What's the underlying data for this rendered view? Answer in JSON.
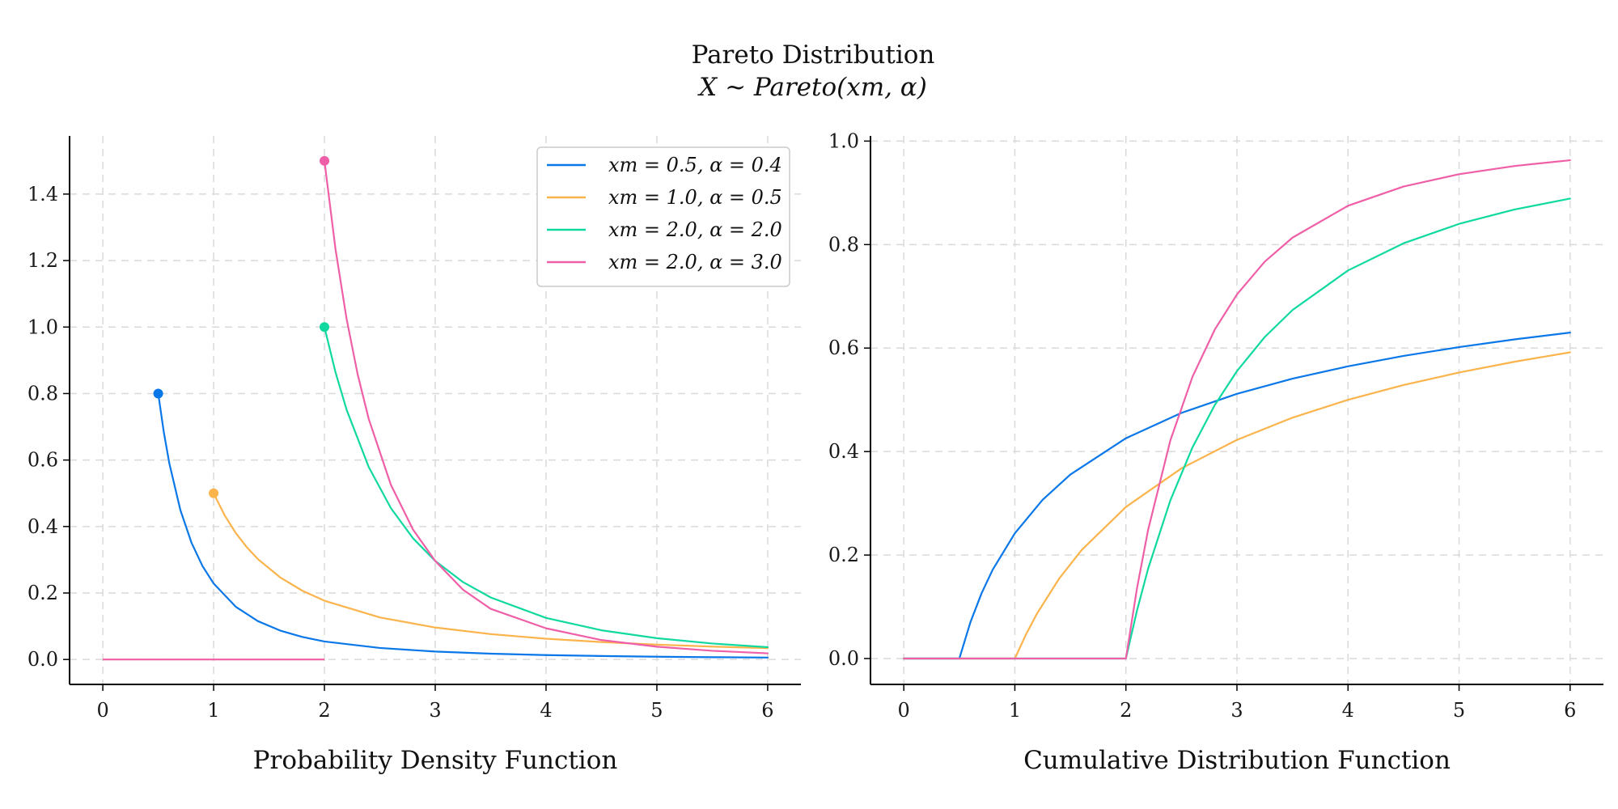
{
  "title": "Pareto Distribution",
  "subtitle": "X ~ Pareto(xm, α)",
  "chart_data": [
    {
      "type": "line",
      "title": "Probability Density Function",
      "xlim": [
        -0.3,
        6.3
      ],
      "ylim": [
        -0.075,
        1.575
      ],
      "xticks": [
        0,
        1,
        2,
        3,
        4,
        5,
        6
      ],
      "xtick_labels": [
        "0",
        "1",
        "2",
        "3",
        "4",
        "5",
        "6"
      ],
      "yticks": [
        0.0,
        0.2,
        0.4,
        0.6,
        0.8,
        1.0,
        1.2,
        1.4
      ],
      "ytick_labels": [
        "0.0",
        "0.2",
        "0.4",
        "0.6",
        "0.8",
        "1.0",
        "1.2",
        "1.4"
      ],
      "grid": true,
      "legend": "top-right",
      "series": [
        {
          "name": "xm = 0.5, α = 0.4",
          "color": "#0a77e8",
          "points": [
            [
              0.5,
              0.8
            ],
            [
              0.55,
              0.6848
            ],
            [
              0.6,
              0.5904
            ],
            [
              0.7,
              0.4494
            ],
            [
              0.8,
              0.3514
            ],
            [
              0.9,
              0.2808
            ],
            [
              1.0,
              0.2286
            ],
            [
              1.2,
              0.1585
            ],
            [
              1.4,
              0.1153
            ],
            [
              1.6,
              0.0871
            ],
            [
              1.8,
              0.0678
            ],
            [
              2.0,
              0.0541
            ],
            [
              2.5,
              0.0346
            ],
            [
              3.0,
              0.0238
            ],
            [
              3.5,
              0.0174
            ],
            [
              4.0,
              0.0132
            ],
            [
              4.5,
              0.0104
            ],
            [
              5.0,
              0.0084
            ],
            [
              5.5,
              0.0069
            ],
            [
              6.0,
              0.0058
            ]
          ],
          "marker": [
            0.5,
            0.8
          ]
        },
        {
          "name": "xm = 1.0, α = 0.5",
          "color": "#fbb34c",
          "points": [
            [
              1.0,
              0.5
            ],
            [
              1.1,
              0.4334
            ],
            [
              1.2,
              0.3804
            ],
            [
              1.3,
              0.3374
            ],
            [
              1.4,
              0.3018
            ],
            [
              1.6,
              0.2471
            ],
            [
              1.8,
              0.207
            ],
            [
              2.0,
              0.1768
            ],
            [
              2.5,
              0.1265
            ],
            [
              3.0,
              0.0962
            ],
            [
              3.5,
              0.0764
            ],
            [
              4.0,
              0.0625
            ],
            [
              4.5,
              0.0524
            ],
            [
              5.0,
              0.0447
            ],
            [
              5.5,
              0.0388
            ],
            [
              6.0,
              0.034
            ]
          ],
          "marker": [
            1.0,
            0.5
          ]
        },
        {
          "name": "xm = 2.0, α = 2.0",
          "color": "#10d9a0",
          "points": [
            [
              2.0,
              1.0
            ],
            [
              2.1,
              0.8638
            ],
            [
              2.2,
              0.7513
            ],
            [
              2.4,
              0.5787
            ],
            [
              2.6,
              0.4552
            ],
            [
              2.8,
              0.3644
            ],
            [
              3.0,
              0.2963
            ],
            [
              3.25,
              0.233
            ],
            [
              3.5,
              0.1866
            ],
            [
              4.0,
              0.125
            ],
            [
              4.5,
              0.0878
            ],
            [
              5.0,
              0.064
            ],
            [
              5.5,
              0.0481
            ],
            [
              6.0,
              0.037
            ]
          ],
          "marker": [
            2.0,
            1.0
          ]
        },
        {
          "name": "xm = 2.0, α = 3.0",
          "color": "#ef5fa7",
          "points": [
            [
              2.0,
              1.5
            ],
            [
              2.1,
              1.234
            ],
            [
              2.2,
              1.0245
            ],
            [
              2.3,
              0.8576
            ],
            [
              2.4,
              0.7234
            ],
            [
              2.6,
              0.5252
            ],
            [
              2.8,
              0.3904
            ],
            [
              3.0,
              0.2963
            ],
            [
              3.25,
              0.21
            ],
            [
              3.5,
              0.1524
            ],
            [
              4.0,
              0.0938
            ],
            [
              4.5,
              0.0585
            ],
            [
              5.0,
              0.0384
            ],
            [
              5.5,
              0.0262
            ],
            [
              6.0,
              0.0185
            ]
          ],
          "marker": [
            2.0,
            1.5
          ],
          "baseline": [
            [
              0,
              0
            ],
            [
              2.0,
              0
            ]
          ]
        }
      ]
    },
    {
      "type": "line",
      "title": "Cumulative Distribution Function",
      "xlim": [
        -0.3,
        6.3
      ],
      "ylim": [
        -0.05,
        1.01
      ],
      "xticks": [
        0,
        1,
        2,
        3,
        4,
        5,
        6
      ],
      "xtick_labels": [
        "0",
        "1",
        "2",
        "3",
        "4",
        "5",
        "6"
      ],
      "yticks": [
        0.0,
        0.2,
        0.4,
        0.6,
        0.8,
        1.0
      ],
      "ytick_labels": [
        "0.0",
        "0.2",
        "0.4",
        "0.6",
        "0.8",
        "1.0"
      ],
      "grid": true,
      "series": [
        {
          "name": "xm = 0.5, α = 0.4",
          "color": "#0a77e8",
          "points": [
            [
              0,
              0
            ],
            [
              0.5,
              0
            ],
            [
              0.6,
              0.0703
            ],
            [
              0.7,
              0.126
            ],
            [
              0.8,
              0.1715
            ],
            [
              1.0,
              0.2421
            ],
            [
              1.25,
              0.3068
            ],
            [
              1.5,
              0.3556
            ],
            [
              2.0,
              0.4257
            ],
            [
              2.5,
              0.4747
            ],
            [
              3.0,
              0.5116
            ],
            [
              3.5,
              0.5408
            ],
            [
              4.0,
              0.5647
            ],
            [
              4.5,
              0.5848
            ],
            [
              5.0,
              0.6019
            ],
            [
              5.5,
              0.6168
            ],
            [
              6.0,
              0.6299
            ]
          ]
        },
        {
          "name": "xm = 1.0, α = 0.5",
          "color": "#fbb34c",
          "points": [
            [
              0,
              0
            ],
            [
              1.0,
              0
            ],
            [
              1.1,
              0.0465
            ],
            [
              1.2,
              0.0871
            ],
            [
              1.4,
              0.1548
            ],
            [
              1.6,
              0.2094
            ],
            [
              2.0,
              0.2929
            ],
            [
              2.5,
              0.3675
            ],
            [
              3.0,
              0.4226
            ],
            [
              3.5,
              0.4655
            ],
            [
              4.0,
              0.5
            ],
            [
              4.5,
              0.5286
            ],
            [
              5.0,
              0.5528
            ],
            [
              5.5,
              0.5736
            ],
            [
              6.0,
              0.5918
            ]
          ]
        },
        {
          "name": "xm = 2.0, α = 2.0",
          "color": "#10d9a0",
          "points": [
            [
              0,
              0
            ],
            [
              2.0,
              0
            ],
            [
              2.1,
              0.093
            ],
            [
              2.2,
              0.1736
            ],
            [
              2.4,
              0.3056
            ],
            [
              2.6,
              0.4083
            ],
            [
              2.8,
              0.4898
            ],
            [
              3.0,
              0.5556
            ],
            [
              3.25,
              0.6213
            ],
            [
              3.5,
              0.6735
            ],
            [
              4.0,
              0.75
            ],
            [
              4.5,
              0.8025
            ],
            [
              5.0,
              0.84
            ],
            [
              5.5,
              0.8678
            ],
            [
              6.0,
              0.8889
            ]
          ]
        },
        {
          "name": "xm = 2.0, α = 3.0",
          "color": "#ef5fa7",
          "points": [
            [
              0,
              0
            ],
            [
              2.0,
              0
            ],
            [
              2.1,
              0.1362
            ],
            [
              2.2,
              0.2487
            ],
            [
              2.4,
              0.4213
            ],
            [
              2.6,
              0.5448
            ],
            [
              2.8,
              0.6356
            ],
            [
              3.0,
              0.7037
            ],
            [
              3.25,
              0.767
            ],
            [
              3.5,
              0.8134
            ],
            [
              4.0,
              0.875
            ],
            [
              4.5,
              0.9122
            ],
            [
              5.0,
              0.936
            ],
            [
              5.5,
              0.9519
            ],
            [
              6.0,
              0.963
            ]
          ]
        }
      ]
    }
  ]
}
